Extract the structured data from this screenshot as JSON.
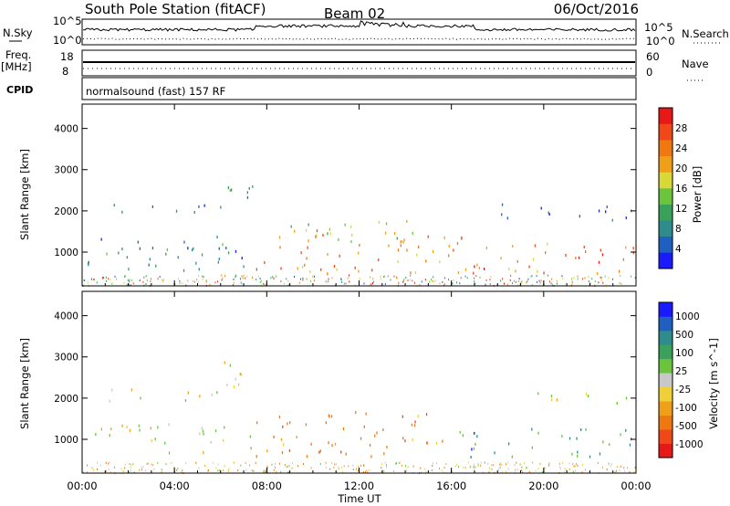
{
  "header": {
    "title": "South Pole Station (fitACF)",
    "beam": "Beam 02",
    "date": "06/Oct/2016"
  },
  "panels": {
    "nsky": {
      "label": "N.Sky",
      "right_label": "N.Search",
      "ticks_left": [
        "10^5",
        "10^0"
      ],
      "ticks_right": [
        "10^5",
        "10^0"
      ]
    },
    "freq": {
      "label_top": "Freq.",
      "label_unit": "[MHz]",
      "right_label": "Nave",
      "ticks_left": [
        "18",
        "8"
      ],
      "ticks_right": [
        "60",
        "0"
      ]
    },
    "cpid": {
      "label": "CPID",
      "text": "normalsound (fast) 157 RF"
    }
  },
  "colors": {
    "power_scale": [
      "#1a1aff",
      "#1f5fc0",
      "#2e8c8c",
      "#3aa05a",
      "#6ac43c",
      "#d8d838",
      "#f0a018",
      "#f07810",
      "#f04818",
      "#e81818"
    ],
    "velocity_scale": [
      "#e81818",
      "#f04818",
      "#f07810",
      "#f0a018",
      "#f0d038",
      "#c8c8c8",
      "#6ac43c",
      "#3aa05a",
      "#2e8c8c",
      "#1f5fc0",
      "#1a1aff"
    ]
  },
  "chart_data": [
    {
      "type": "heatmap",
      "title": "Power",
      "xlabel": "",
      "ylabel": "Slant Range [km]",
      "xlim": [
        "00:00",
        "24:00"
      ],
      "ylim": [
        180,
        4590
      ],
      "x_ticks": [
        "00:00",
        "04:00",
        "08:00",
        "12:00",
        "16:00",
        "20:00",
        "00:00"
      ],
      "y_ticks": [
        1000,
        2000,
        3000,
        4000
      ],
      "colorbar": {
        "label": "Power [dB]",
        "min": 0,
        "max": 32,
        "ticks": [
          4,
          8,
          12,
          16,
          20,
          24,
          28
        ]
      },
      "regions": [
        {
          "t": [
            0.4,
            6.0
          ],
          "r": [
            1950,
            2200
          ],
          "v": 6
        },
        {
          "t": [
            6.0,
            7.4
          ],
          "r": [
            2200,
            3100
          ],
          "v": 8
        },
        {
          "t": [
            0.2,
            7.3
          ],
          "r": [
            500,
            1400
          ],
          "v": 8
        },
        {
          "t": [
            7.5,
            16.5
          ],
          "r": [
            500,
            1600
          ],
          "v": 23
        },
        {
          "t": [
            16.5,
            24.0
          ],
          "r": [
            500,
            1300
          ],
          "v": 24
        },
        {
          "t": [
            9.0,
            14.5
          ],
          "r": [
            1200,
            1800
          ],
          "v": 15
        },
        {
          "t": [
            18.0,
            23.9
          ],
          "r": [
            1800,
            2200
          ],
          "v": 6
        }
      ]
    },
    {
      "type": "heatmap",
      "title": "Velocity",
      "xlabel": "Time UT",
      "ylabel": "Slant Range [km]",
      "xlim": [
        "00:00",
        "24:00"
      ],
      "ylim": [
        180,
        4590
      ],
      "x_ticks": [
        "00:00",
        "04:00",
        "08:00",
        "12:00",
        "16:00",
        "20:00",
        "00:00"
      ],
      "y_ticks": [
        1000,
        2000,
        3000,
        4000
      ],
      "colorbar": {
        "label": "Velocity [m s^-1]",
        "ticks": [
          1000,
          500,
          100,
          25,
          -25,
          -100,
          -500,
          -1000
        ]
      },
      "regions": [
        {
          "t": [
            0.4,
            6.0
          ],
          "r": [
            1950,
            2250
          ],
          "v": 0
        },
        {
          "t": [
            6.0,
            7.4
          ],
          "r": [
            2200,
            3200
          ],
          "v": 0
        },
        {
          "t": [
            0.4,
            7.3
          ],
          "r": [
            700,
            1400
          ],
          "v": 80
        },
        {
          "t": [
            7.5,
            16.0
          ],
          "r": [
            600,
            1700
          ],
          "v": -300
        },
        {
          "t": [
            16.0,
            23.8
          ],
          "r": [
            600,
            1300
          ],
          "v": 600
        },
        {
          "t": [
            18.0,
            23.9
          ],
          "r": [
            1900,
            2150
          ],
          "v": 150
        }
      ]
    }
  ]
}
